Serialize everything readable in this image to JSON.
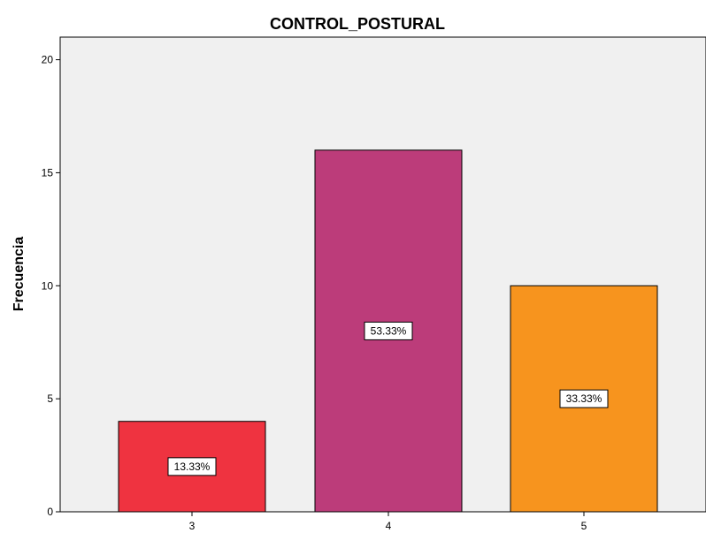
{
  "chart_data": {
    "type": "bar",
    "title": "CONTROL_POSTURAL",
    "xlabel": "",
    "ylabel": "Frecuencia",
    "categories": [
      "3",
      "4",
      "5"
    ],
    "values": [
      4,
      16,
      10
    ],
    "data_labels": [
      "13.33%",
      "53.33%",
      "33.33%"
    ],
    "colors": [
      "#ef3340",
      "#bc3c7a",
      "#f7941e"
    ],
    "ylim": [
      0,
      21
    ],
    "yticks": [
      0,
      5,
      10,
      15,
      20
    ],
    "grid": false,
    "plot_background": "#f0f0f0"
  }
}
